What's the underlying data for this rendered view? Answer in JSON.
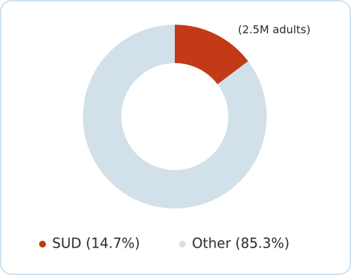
{
  "chart_data": {
    "type": "donut",
    "categories": [
      "SUD (14.7%)",
      "Other (85.3%)"
    ],
    "values": [
      14.7,
      85.3
    ],
    "colors": [
      "#c23a16",
      "#d2e0ea"
    ],
    "annotation": "(2.5M adults)"
  }
}
